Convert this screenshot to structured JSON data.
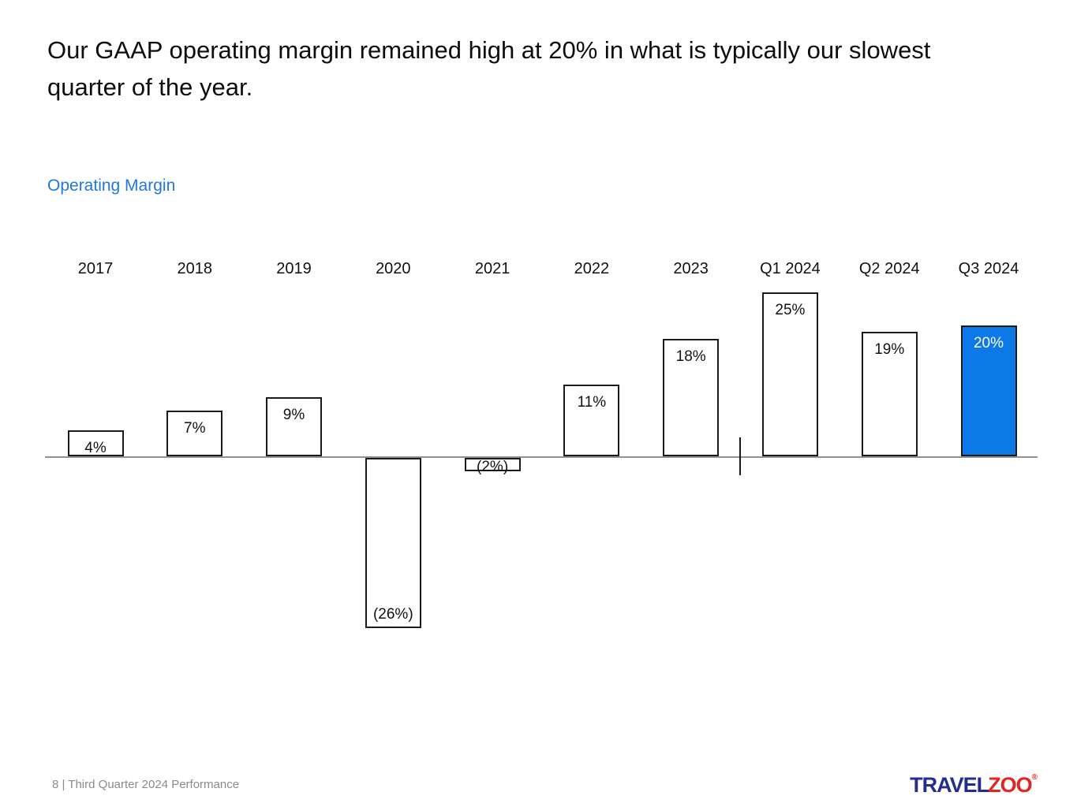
{
  "slide": {
    "title": "Our GAAP operating margin remained high at 20% in what is typically our slowest quarter of the year.",
    "chart_label": "Operating Margin",
    "footer": "8 | Third Quarter 2024 Performance",
    "logo": {
      "travel": "TRAVEL",
      "zoo": "ZOO",
      "registered_mark": "®"
    }
  },
  "colors": {
    "accent_blue": "#0d78e8",
    "chart_label_blue": "#2077dd",
    "bar_outline": "#1a1a1a",
    "axis_gray": "#919191",
    "footer_gray": "#8a8a8a",
    "logo_blue": "#232d8d",
    "logo_red": "#e32421",
    "highlight_text": "#ffffff",
    "default_text": "#111111"
  },
  "chart_data": {
    "type": "bar",
    "title": "Operating Margin",
    "categories": [
      "2017",
      "2018",
      "2019",
      "2020",
      "2021",
      "2022",
      "2023",
      "Q1 2024",
      "Q2 2024",
      "Q3 2024"
    ],
    "values": [
      4,
      7,
      9,
      -26,
      -2,
      11,
      18,
      25,
      19,
      20
    ],
    "labels": [
      "4%",
      "7%",
      "9%",
      "(26%)",
      "(2%)",
      "11%",
      "18%",
      "25%",
      "19%",
      "20%"
    ],
    "highlight_index": 9,
    "bar_fill_default": "#ffffff",
    "bar_fill_highlight": "#0d78e8",
    "divider_after_index": 6,
    "ylim": [
      -30,
      30
    ],
    "grid": false,
    "y_axis_visible": false,
    "value_labels_inside_bars": true
  }
}
